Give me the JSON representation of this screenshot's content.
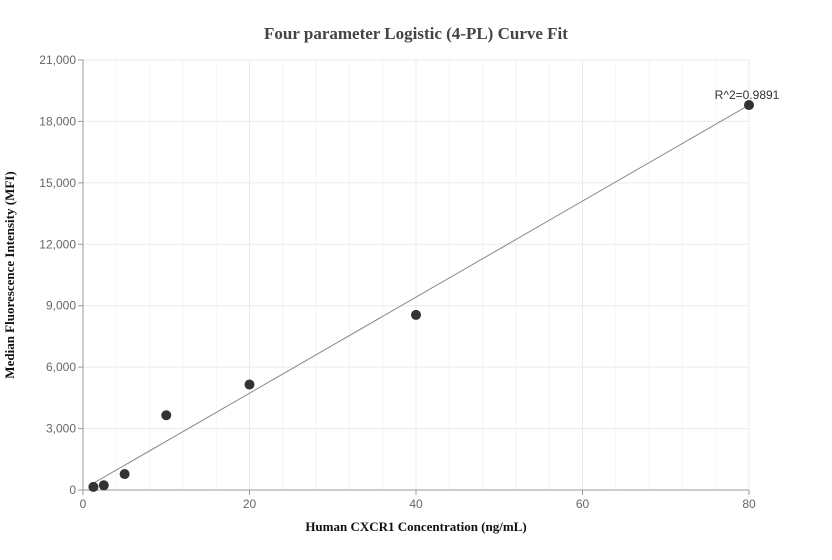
{
  "chart_data": {
    "type": "scatter",
    "title": "Four parameter Logistic (4-PL) Curve Fit",
    "xlabel": "Human CXCR1 Concentration (ng/mL)",
    "ylabel": "Median Fluorescence Intensity (MFI)",
    "xlim": [
      0,
      80
    ],
    "ylim": [
      0,
      21000
    ],
    "x_ticks": [
      0,
      20,
      40,
      60,
      80
    ],
    "x_tick_labels": [
      "0",
      "20",
      "40",
      "60",
      "80"
    ],
    "y_ticks": [
      0,
      3000,
      6000,
      9000,
      12000,
      15000,
      18000,
      21000
    ],
    "y_tick_labels": [
      "0",
      "3,000",
      "6,000",
      "9,000",
      "12,000",
      "15,000",
      "18,000",
      "21,000"
    ],
    "grid": true,
    "points": [
      {
        "x": 1.25,
        "y": 150
      },
      {
        "x": 2.5,
        "y": 230
      },
      {
        "x": 5,
        "y": 780
      },
      {
        "x": 10,
        "y": 3650
      },
      {
        "x": 20,
        "y": 5150
      },
      {
        "x": 40,
        "y": 8550
      },
      {
        "x": 80,
        "y": 18800
      }
    ],
    "fit_line": [
      {
        "x": 1.25,
        "y": 330
      },
      {
        "x": 80,
        "y": 18800
      }
    ],
    "annotation": "R^2=0.9891",
    "colors": {
      "point": "#333333",
      "fit_line": "#888888",
      "grid": "#ebebeb",
      "axis": "#999999"
    }
  }
}
